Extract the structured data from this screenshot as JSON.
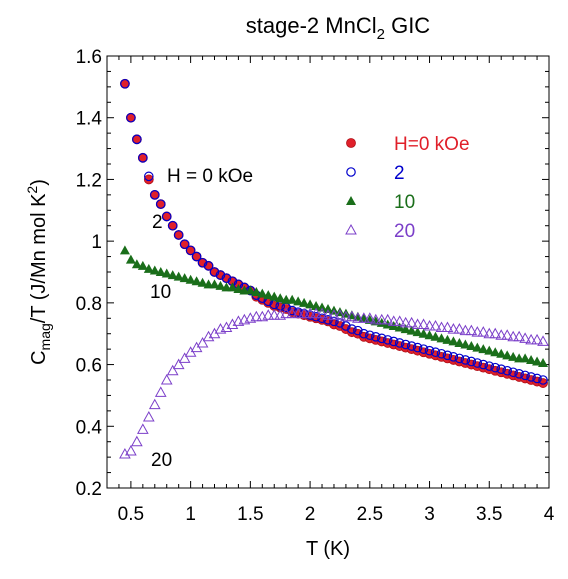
{
  "chart_data": {
    "type": "scatter",
    "title_main": "stage-2 MnCl",
    "title_sub": "2",
    "title_tail": " GIC",
    "xlabel": "T (K)",
    "ylabel_parts": {
      "c": "C",
      "mag": "mag",
      "mid": "/T  (J/Mn mol K",
      "sup": "2",
      "end": ")"
    },
    "xlim": [
      0.3,
      4.0
    ],
    "ylim": [
      0.2,
      1.6
    ],
    "x_ticks": [
      "0.5",
      "1",
      "1.5",
      "2",
      "2.5",
      "3",
      "3.5",
      "4"
    ],
    "y_ticks": [
      "0.2",
      "0.4",
      "0.6",
      "0.8",
      "1",
      "1.2",
      "1.4",
      "1.6"
    ],
    "legend_position": "top-right",
    "annotations": {
      "h0": "H = 0 kOe",
      "h2": "2",
      "h10": "10",
      "h20": "20"
    },
    "colors": {
      "h0": "#e0202a",
      "h2": "#0000cc",
      "h10": "#1a6e1a",
      "h20": "#7b3fc9"
    },
    "series": [
      {
        "name": "H=0 kOe",
        "marker": "filled-circle",
        "x": [
          0.45,
          0.5,
          0.55,
          0.6,
          0.65,
          0.7,
          0.75,
          0.8,
          0.85,
          0.9,
          0.95,
          1.0,
          1.05,
          1.1,
          1.15,
          1.2,
          1.25,
          1.3,
          1.35,
          1.4,
          1.45,
          1.5,
          1.55,
          1.6,
          1.65,
          1.7,
          1.75,
          1.8,
          1.85,
          1.9,
          1.95,
          2.0,
          2.05,
          2.1,
          2.15,
          2.2,
          2.25,
          2.3,
          2.35,
          2.4,
          2.45,
          2.5,
          2.55,
          2.6,
          2.65,
          2.7,
          2.75,
          2.8,
          2.85,
          2.9,
          2.95,
          3.0,
          3.05,
          3.1,
          3.15,
          3.2,
          3.25,
          3.3,
          3.35,
          3.4,
          3.45,
          3.5,
          3.55,
          3.6,
          3.65,
          3.7,
          3.75,
          3.8,
          3.85,
          3.9,
          3.95
        ],
        "y": [
          1.51,
          1.4,
          1.33,
          1.27,
          1.2,
          1.15,
          1.12,
          1.08,
          1.05,
          1.02,
          0.99,
          0.97,
          0.95,
          0.93,
          0.92,
          0.9,
          0.89,
          0.88,
          0.87,
          0.86,
          0.85,
          0.84,
          0.82,
          0.81,
          0.8,
          0.79,
          0.785,
          0.78,
          0.77,
          0.765,
          0.76,
          0.755,
          0.75,
          0.745,
          0.74,
          0.73,
          0.725,
          0.715,
          0.705,
          0.7,
          0.69,
          0.685,
          0.68,
          0.675,
          0.67,
          0.665,
          0.66,
          0.655,
          0.65,
          0.645,
          0.64,
          0.635,
          0.63,
          0.625,
          0.62,
          0.615,
          0.61,
          0.605,
          0.6,
          0.595,
          0.59,
          0.585,
          0.58,
          0.575,
          0.57,
          0.565,
          0.56,
          0.555,
          0.55,
          0.545,
          0.54
        ]
      },
      {
        "name": "2",
        "marker": "open-circle",
        "x": [
          0.45,
          0.5,
          0.55,
          0.6,
          0.65,
          0.7,
          0.75,
          0.8,
          0.85,
          0.9,
          0.95,
          1.0,
          1.05,
          1.1,
          1.15,
          1.2,
          1.25,
          1.3,
          1.35,
          1.4,
          1.45,
          1.5,
          1.55,
          1.6,
          1.65,
          1.7,
          1.75,
          1.8,
          1.85,
          1.9,
          1.95,
          2.0,
          2.05,
          2.1,
          2.15,
          2.2,
          2.25,
          2.3,
          2.35,
          2.4,
          2.45,
          2.5,
          2.55,
          2.6,
          2.65,
          2.7,
          2.75,
          2.8,
          2.85,
          2.9,
          2.95,
          3.0,
          3.05,
          3.1,
          3.15,
          3.2,
          3.25,
          3.3,
          3.35,
          3.4,
          3.45,
          3.5,
          3.55,
          3.6,
          3.65,
          3.7,
          3.75,
          3.8,
          3.85,
          3.9,
          3.95
        ],
        "y": [
          1.51,
          1.4,
          1.33,
          1.27,
          1.21,
          1.15,
          1.12,
          1.08,
          1.05,
          1.02,
          0.99,
          0.97,
          0.95,
          0.93,
          0.92,
          0.9,
          0.89,
          0.88,
          0.87,
          0.86,
          0.85,
          0.84,
          0.825,
          0.815,
          0.805,
          0.795,
          0.79,
          0.785,
          0.775,
          0.77,
          0.765,
          0.76,
          0.755,
          0.75,
          0.745,
          0.74,
          0.735,
          0.725,
          0.715,
          0.71,
          0.7,
          0.695,
          0.69,
          0.685,
          0.68,
          0.675,
          0.67,
          0.665,
          0.66,
          0.655,
          0.65,
          0.645,
          0.64,
          0.635,
          0.63,
          0.625,
          0.62,
          0.615,
          0.61,
          0.605,
          0.6,
          0.595,
          0.59,
          0.585,
          0.58,
          0.575,
          0.57,
          0.565,
          0.56,
          0.555,
          0.55
        ]
      },
      {
        "name": "10",
        "marker": "filled-triangle",
        "x": [
          0.45,
          0.5,
          0.55,
          0.6,
          0.65,
          0.7,
          0.75,
          0.8,
          0.85,
          0.9,
          0.95,
          1.0,
          1.05,
          1.1,
          1.15,
          1.2,
          1.25,
          1.3,
          1.35,
          1.4,
          1.45,
          1.5,
          1.55,
          1.6,
          1.65,
          1.7,
          1.75,
          1.8,
          1.85,
          1.9,
          1.95,
          2.0,
          2.05,
          2.1,
          2.15,
          2.2,
          2.25,
          2.3,
          2.35,
          2.4,
          2.45,
          2.5,
          2.55,
          2.6,
          2.65,
          2.7,
          2.75,
          2.8,
          2.85,
          2.9,
          2.95,
          3.0,
          3.05,
          3.1,
          3.15,
          3.2,
          3.25,
          3.3,
          3.35,
          3.4,
          3.45,
          3.5,
          3.55,
          3.6,
          3.65,
          3.7,
          3.75,
          3.8,
          3.85,
          3.9,
          3.95
        ],
        "y": [
          0.97,
          0.94,
          0.925,
          0.92,
          0.91,
          0.905,
          0.9,
          0.895,
          0.89,
          0.885,
          0.88,
          0.875,
          0.87,
          0.865,
          0.86,
          0.86,
          0.855,
          0.85,
          0.85,
          0.845,
          0.84,
          0.84,
          0.835,
          0.83,
          0.825,
          0.82,
          0.815,
          0.81,
          0.81,
          0.805,
          0.8,
          0.795,
          0.79,
          0.785,
          0.78,
          0.775,
          0.77,
          0.765,
          0.76,
          0.755,
          0.75,
          0.745,
          0.74,
          0.735,
          0.73,
          0.725,
          0.72,
          0.715,
          0.71,
          0.705,
          0.7,
          0.695,
          0.69,
          0.685,
          0.68,
          0.675,
          0.67,
          0.665,
          0.66,
          0.655,
          0.65,
          0.645,
          0.64,
          0.635,
          0.63,
          0.625,
          0.62,
          0.62,
          0.615,
          0.61,
          0.605
        ]
      },
      {
        "name": "20",
        "marker": "open-triangle",
        "x": [
          0.45,
          0.5,
          0.55,
          0.6,
          0.65,
          0.7,
          0.75,
          0.8,
          0.85,
          0.9,
          0.95,
          1.0,
          1.05,
          1.1,
          1.15,
          1.2,
          1.25,
          1.3,
          1.35,
          1.4,
          1.45,
          1.5,
          1.55,
          1.6,
          1.65,
          1.7,
          1.75,
          1.8,
          1.85,
          1.9,
          1.95,
          2.0,
          2.05,
          2.1,
          2.15,
          2.2,
          2.25,
          2.3,
          2.35,
          2.4,
          2.45,
          2.5,
          2.55,
          2.6,
          2.65,
          2.7,
          2.75,
          2.8,
          2.85,
          2.9,
          2.95,
          3.0,
          3.05,
          3.1,
          3.15,
          3.2,
          3.25,
          3.3,
          3.35,
          3.4,
          3.45,
          3.5,
          3.55,
          3.6,
          3.65,
          3.7,
          3.75,
          3.8,
          3.85,
          3.9,
          3.95
        ],
        "y": [
          0.31,
          0.32,
          0.35,
          0.39,
          0.43,
          0.47,
          0.51,
          0.55,
          0.58,
          0.6,
          0.62,
          0.64,
          0.655,
          0.67,
          0.69,
          0.7,
          0.715,
          0.72,
          0.73,
          0.74,
          0.745,
          0.75,
          0.755,
          0.755,
          0.76,
          0.76,
          0.76,
          0.765,
          0.765,
          0.765,
          0.765,
          0.765,
          0.765,
          0.765,
          0.76,
          0.76,
          0.76,
          0.755,
          0.755,
          0.75,
          0.75,
          0.75,
          0.745,
          0.745,
          0.745,
          0.74,
          0.74,
          0.735,
          0.735,
          0.73,
          0.73,
          0.725,
          0.725,
          0.72,
          0.72,
          0.715,
          0.715,
          0.71,
          0.71,
          0.705,
          0.705,
          0.7,
          0.7,
          0.695,
          0.695,
          0.69,
          0.69,
          0.685,
          0.68,
          0.68,
          0.675
        ]
      }
    ]
  }
}
